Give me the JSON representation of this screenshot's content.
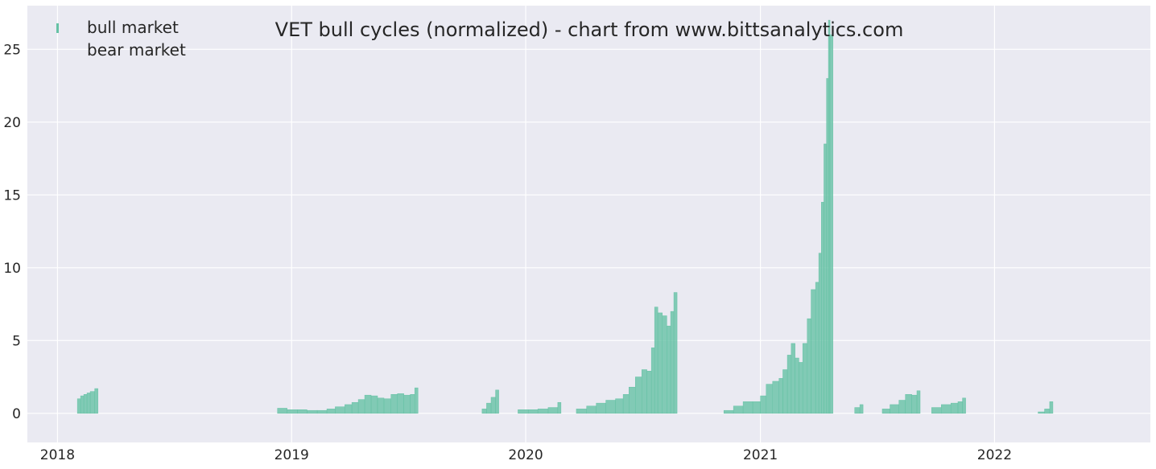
{
  "chart_data": {
    "type": "bar",
    "title": "VET bull cycles (normalized)  - chart from www.bittsanalytics.com",
    "xlabel": "",
    "ylabel": "",
    "x_ticks": [
      "2018",
      "2019",
      "2020",
      "2021",
      "2022"
    ],
    "y_ticks": [
      0,
      5,
      10,
      15,
      20,
      25
    ],
    "ylim": [
      -2,
      28
    ],
    "xlim": [
      "2017-11-15",
      "2022-09-01"
    ],
    "grid": true,
    "legend_position": "top-left",
    "colors": {
      "bull": "#66c2a5",
      "bear": "#fc8d62",
      "background": "#eaeaf2",
      "grid": "#ffffff"
    },
    "series": [
      {
        "name": "bull market",
        "points": [
          [
            "2018-02-01",
            1.0
          ],
          [
            "2018-02-06",
            1.2
          ],
          [
            "2018-02-11",
            1.3
          ],
          [
            "2018-02-16",
            1.4
          ],
          [
            "2018-02-21",
            1.5
          ],
          [
            "2018-02-28",
            1.7
          ],
          [
            "2018-12-10",
            0.35
          ],
          [
            "2018-12-25",
            0.25
          ],
          [
            "2019-01-10",
            0.25
          ],
          [
            "2019-01-25",
            0.2
          ],
          [
            "2019-02-10",
            0.2
          ],
          [
            "2019-02-25",
            0.3
          ],
          [
            "2019-03-10",
            0.45
          ],
          [
            "2019-03-25",
            0.6
          ],
          [
            "2019-04-05",
            0.75
          ],
          [
            "2019-04-15",
            0.95
          ],
          [
            "2019-04-25",
            1.25
          ],
          [
            "2019-05-05",
            1.2
          ],
          [
            "2019-05-15",
            1.05
          ],
          [
            "2019-05-25",
            1.0
          ],
          [
            "2019-06-05",
            1.3
          ],
          [
            "2019-06-15",
            1.35
          ],
          [
            "2019-06-25",
            1.25
          ],
          [
            "2019-07-05",
            1.3
          ],
          [
            "2019-07-12",
            1.75
          ],
          [
            "2019-10-25",
            0.3
          ],
          [
            "2019-11-01",
            0.7
          ],
          [
            "2019-11-08",
            1.1
          ],
          [
            "2019-11-15",
            1.6
          ],
          [
            "2019-12-20",
            0.25
          ],
          [
            "2020-01-05",
            0.25
          ],
          [
            "2020-01-20",
            0.3
          ],
          [
            "2020-02-05",
            0.4
          ],
          [
            "2020-02-20",
            0.75
          ],
          [
            "2020-03-20",
            0.3
          ],
          [
            "2020-04-05",
            0.5
          ],
          [
            "2020-04-20",
            0.7
          ],
          [
            "2020-05-05",
            0.9
          ],
          [
            "2020-05-20",
            1.0
          ],
          [
            "2020-06-01",
            1.3
          ],
          [
            "2020-06-10",
            1.8
          ],
          [
            "2020-06-20",
            2.5
          ],
          [
            "2020-06-30",
            3.0
          ],
          [
            "2020-07-08",
            2.9
          ],
          [
            "2020-07-15",
            4.5
          ],
          [
            "2020-07-20",
            7.3
          ],
          [
            "2020-07-25",
            6.9
          ],
          [
            "2020-08-01",
            6.7
          ],
          [
            "2020-08-08",
            6.0
          ],
          [
            "2020-08-14",
            7.0
          ],
          [
            "2020-08-19",
            8.3
          ],
          [
            "2020-11-05",
            0.2
          ],
          [
            "2020-11-20",
            0.5
          ],
          [
            "2020-12-05",
            0.8
          ],
          [
            "2020-12-20",
            0.8
          ],
          [
            "2021-01-01",
            1.2
          ],
          [
            "2021-01-10",
            2.0
          ],
          [
            "2021-01-20",
            2.2
          ],
          [
            "2021-01-30",
            2.4
          ],
          [
            "2021-02-05",
            3.0
          ],
          [
            "2021-02-12",
            4.0
          ],
          [
            "2021-02-18",
            4.8
          ],
          [
            "2021-02-24",
            3.8
          ],
          [
            "2021-03-02",
            3.5
          ],
          [
            "2021-03-08",
            4.8
          ],
          [
            "2021-03-15",
            6.5
          ],
          [
            "2021-03-21",
            8.5
          ],
          [
            "2021-03-28",
            9.0
          ],
          [
            "2021-04-02",
            11.0
          ],
          [
            "2021-04-06",
            14.5
          ],
          [
            "2021-04-10",
            18.5
          ],
          [
            "2021-04-14",
            23.0
          ],
          [
            "2021-04-17",
            27.0
          ],
          [
            "2021-04-19",
            26.0
          ],
          [
            "2021-05-28",
            0.4
          ],
          [
            "2021-06-05",
            0.6
          ],
          [
            "2021-07-10",
            0.3
          ],
          [
            "2021-07-22",
            0.6
          ],
          [
            "2021-08-05",
            0.9
          ],
          [
            "2021-08-15",
            1.3
          ],
          [
            "2021-08-25",
            1.25
          ],
          [
            "2021-09-02",
            1.55
          ],
          [
            "2021-09-25",
            0.4
          ],
          [
            "2021-10-10",
            0.6
          ],
          [
            "2021-10-25",
            0.7
          ],
          [
            "2021-11-05",
            0.8
          ],
          [
            "2021-11-12",
            1.05
          ],
          [
            "2022-03-10",
            0.1
          ],
          [
            "2022-03-20",
            0.3
          ],
          [
            "2022-03-28",
            0.8
          ]
        ]
      },
      {
        "name": "bear market",
        "points": []
      }
    ]
  }
}
